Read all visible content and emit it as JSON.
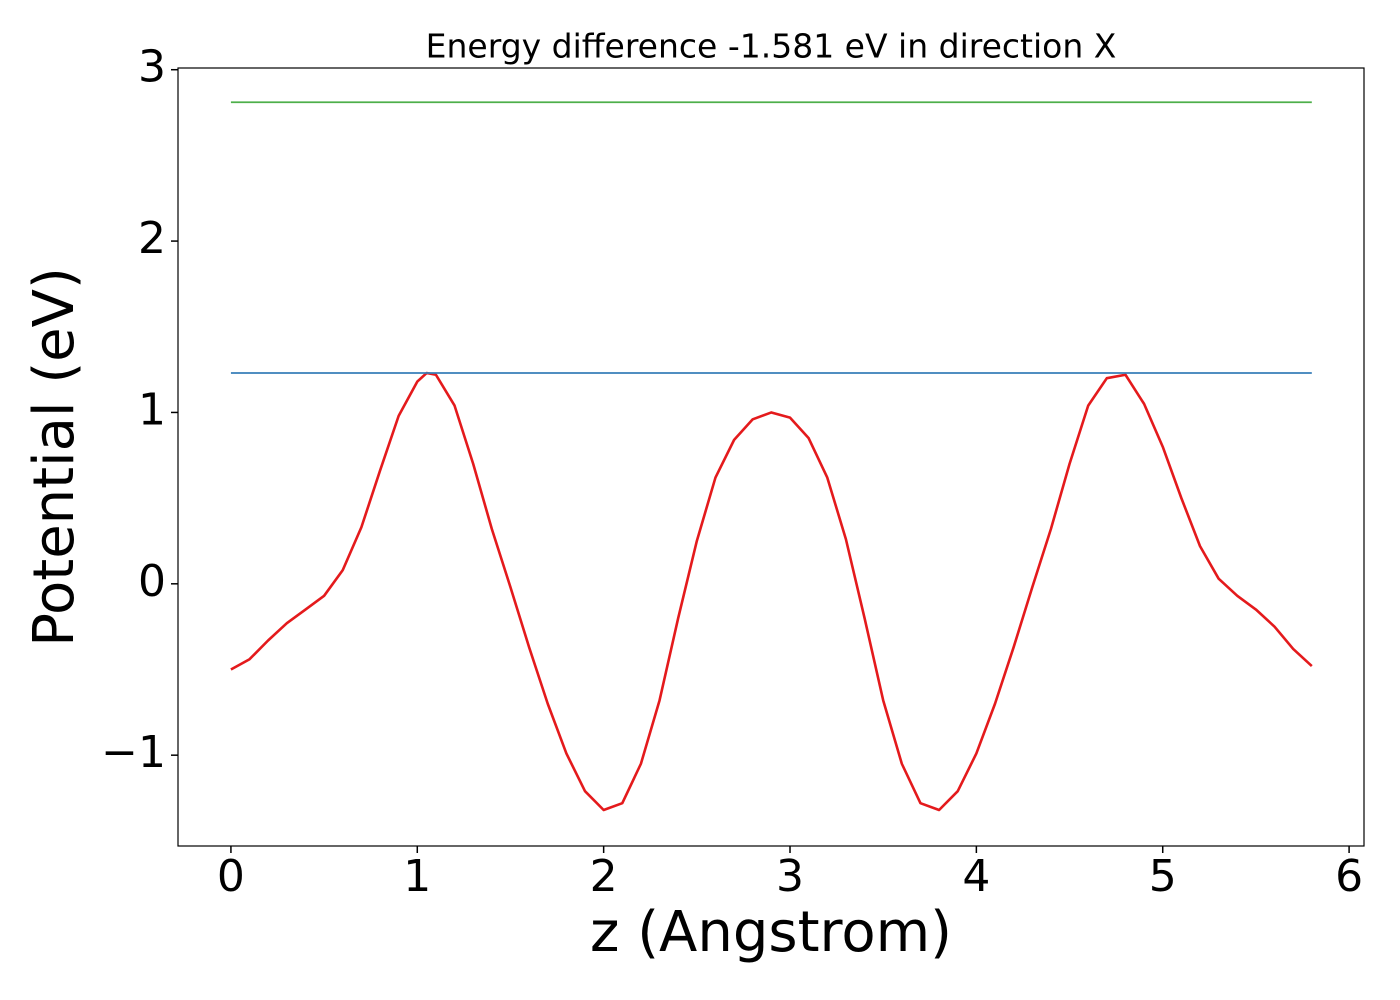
{
  "chart_data": {
    "type": "line",
    "title": "Energy difference -1.581 eV in direction X",
    "xlabel": "z (Angstrom)",
    "ylabel": "Potential (eV)",
    "xlim": [
      -0.284,
      6.08
    ],
    "ylim": [
      -1.53,
      3.01
    ],
    "xticks": [
      0,
      1,
      2,
      3,
      4,
      5,
      6
    ],
    "yticks": [
      {
        "value": -1,
        "label": "−1"
      },
      0,
      1,
      2,
      3
    ],
    "grid": false,
    "series": [
      {
        "color": "#e41a1c",
        "x": [
          0,
          0.1,
          0.2,
          0.3,
          0.4,
          0.5,
          0.6,
          0.7,
          0.8,
          0.9,
          1.0,
          1.05,
          1.1,
          1.2,
          1.3,
          1.4,
          1.5,
          1.6,
          1.7,
          1.8,
          1.9,
          2.0,
          2.1,
          2.2,
          2.3,
          2.4,
          2.5,
          2.6,
          2.7,
          2.8,
          2.9,
          3.0,
          3.1,
          3.2,
          3.3,
          3.4,
          3.5,
          3.6,
          3.7,
          3.8,
          3.9,
          4.0,
          4.1,
          4.2,
          4.3,
          4.4,
          4.5,
          4.6,
          4.7,
          4.8,
          4.9,
          5.0,
          5.1,
          5.2,
          5.3,
          5.4,
          5.5,
          5.6,
          5.7,
          5.8
        ],
        "values": [
          -0.5,
          -0.44,
          -0.33,
          -0.23,
          -0.15,
          -0.07,
          0.08,
          0.33,
          0.66,
          0.98,
          1.18,
          1.23,
          1.22,
          1.04,
          0.7,
          0.32,
          -0.02,
          -0.37,
          -0.7,
          -0.99,
          -1.21,
          -1.32,
          -1.28,
          -1.05,
          -0.68,
          -0.2,
          0.25,
          0.62,
          0.84,
          0.96,
          1.0,
          0.97,
          0.85,
          0.62,
          0.26,
          -0.2,
          -0.68,
          -1.05,
          -1.28,
          -1.32,
          -1.21,
          -0.99,
          -0.7,
          -0.37,
          -0.02,
          0.32,
          0.7,
          1.04,
          1.2,
          1.22,
          1.05,
          0.8,
          0.5,
          0.22,
          0.03,
          -0.07,
          -0.15,
          -0.25,
          -0.38,
          -0.48
        ]
      },
      {
        "color": "#377eb8",
        "x": [
          0,
          5.8
        ],
        "values": [
          1.23,
          1.23
        ]
      },
      {
        "color": "#4daf4a",
        "x": [
          0,
          5.8
        ],
        "values": [
          2.81,
          2.81
        ]
      }
    ]
  }
}
